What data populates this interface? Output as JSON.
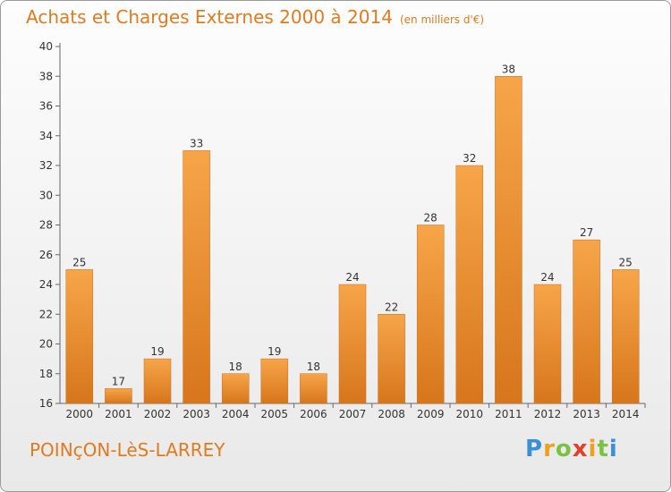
{
  "header": {
    "title": "Achats et Charges Externes 2000 à 2014",
    "subtitle": "(en milliers d'€)"
  },
  "footer": {
    "commune": "POINçON-LèS-LARREY",
    "logo": "Proxiti"
  },
  "colors": {
    "bar_light": "#f7a54a",
    "bar_dark": "#d7761c",
    "title": "#e07b1e"
  },
  "chart_data": {
    "type": "bar",
    "categories": [
      "2000",
      "2001",
      "2002",
      "2003",
      "2004",
      "2005",
      "2006",
      "2007",
      "2008",
      "2009",
      "2010",
      "2011",
      "2012",
      "2013",
      "2014"
    ],
    "values": [
      25,
      17,
      19,
      33,
      18,
      19,
      18,
      24,
      22,
      28,
      32,
      38,
      24,
      27,
      25
    ],
    "ylim": [
      16,
      40
    ],
    "yticks": [
      16,
      18,
      20,
      22,
      24,
      26,
      28,
      30,
      32,
      34,
      36,
      38,
      40
    ],
    "title": "Achats et Charges Externes 2000 à 2014",
    "grid": false,
    "legend": "none"
  }
}
